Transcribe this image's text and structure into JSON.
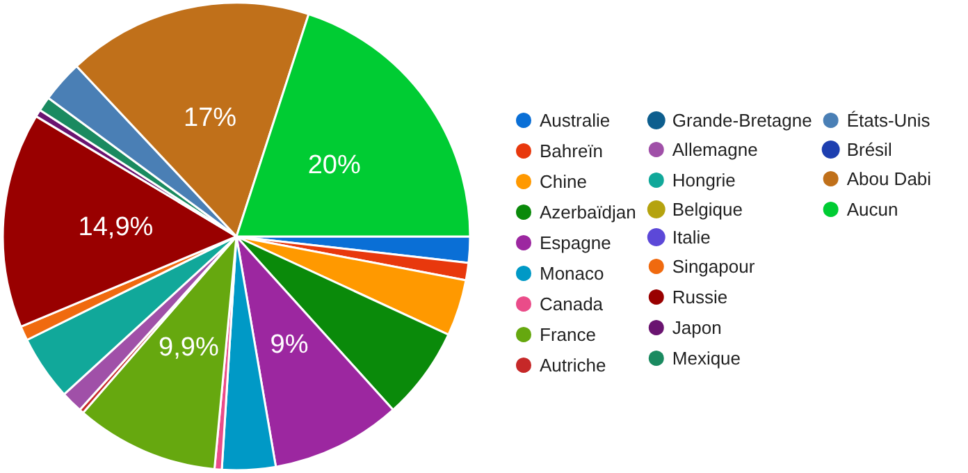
{
  "chart_data": {
    "type": "pie",
    "categories": [
      "Australie",
      "Bahreïn",
      "Chine",
      "Azerbaïdjan",
      "Espagne",
      "Monaco",
      "Canada",
      "France",
      "Autriche",
      "Grande-Bretagne",
      "Allemagne",
      "Hongrie",
      "Belgique",
      "Italie",
      "Singapour",
      "Russie",
      "Japon",
      "Mexique",
      "États-Unis",
      "Brésil",
      "Abou Dabi",
      "Aucun"
    ],
    "values": [
      1.8,
      1.2,
      3.9,
      6.4,
      9,
      3.7,
      0.5,
      9.9,
      0.3,
      0,
      1.5,
      4.5,
      0,
      0,
      1,
      14.9,
      0.5,
      1,
      2.9,
      0,
      17,
      20
    ],
    "value_labels": [
      null,
      null,
      null,
      null,
      "9%",
      null,
      null,
      "9,9%",
      null,
      null,
      null,
      null,
      null,
      null,
      null,
      "14,9%",
      null,
      null,
      null,
      null,
      "17%",
      "20%"
    ],
    "colors": [
      "#0a6fd6",
      "#e8380d",
      "#ff9900",
      "#0a8a0a",
      "#9c27a0",
      "#0099c6",
      "#ea4c89",
      "#66a80f",
      "#c62828",
      "#0d5e8e",
      "#a050a8",
      "#11a89a",
      "#b5a30f",
      "#5c48d8",
      "#f06a0f",
      "#990000",
      "#6a1470",
      "#1a8a60",
      "#4a7fb5",
      "#1d3fb0",
      "#c0701a",
      "#00cc33"
    ],
    "legend": "right"
  }
}
